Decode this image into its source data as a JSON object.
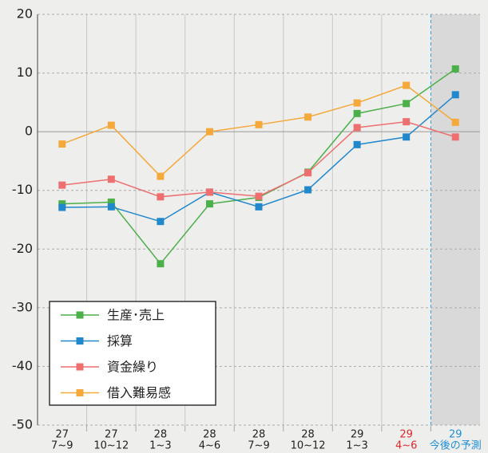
{
  "chart_data": {
    "type": "line",
    "categories": [
      [
        "27",
        "7~9"
      ],
      [
        "27",
        "10~12"
      ],
      [
        "28",
        "1~3"
      ],
      [
        "28",
        "4~6"
      ],
      [
        "28",
        "7~9"
      ],
      [
        "28",
        "10~12"
      ],
      [
        "29",
        "1~3"
      ],
      [
        "29",
        "4~6"
      ],
      [
        "29",
        "今後の予測"
      ]
    ],
    "category_colors": [
      "#222222",
      "#222222",
      "#222222",
      "#222222",
      "#222222",
      "#222222",
      "#222222",
      "#e0262b",
      "#1f8fd6"
    ],
    "shaded_categories": [
      8
    ],
    "series": [
      {
        "name": "生産･売上",
        "color": "#4cb04a",
        "values": [
          -12.3,
          -12,
          -22.5,
          -12.3,
          -11.2,
          -6.9,
          3.1,
          4.8,
          10.7
        ]
      },
      {
        "name": "採算",
        "color": "#2288cc",
        "values": [
          -12.9,
          -12.8,
          -15.3,
          -10.3,
          -12.8,
          -9.9,
          -2.2,
          -0.9,
          6.3
        ]
      },
      {
        "name": "資金繰り",
        "color": "#ee6f6f",
        "values": [
          -9.1,
          -8.1,
          -11.1,
          -10.3,
          -11,
          -7,
          0.7,
          1.7,
          -0.9
        ]
      },
      {
        "name": "借入難易感",
        "color": "#f5a93a",
        "values": [
          -2.1,
          1.1,
          -7.6,
          0,
          1.2,
          2.5,
          4.9,
          7.9,
          1.6
        ]
      }
    ],
    "ylim": [
      -50,
      20
    ],
    "yticks": [
      -50,
      -40,
      -30,
      -20,
      -10,
      0,
      10,
      20
    ],
    "grid": true,
    "legend": "lower-left"
  }
}
